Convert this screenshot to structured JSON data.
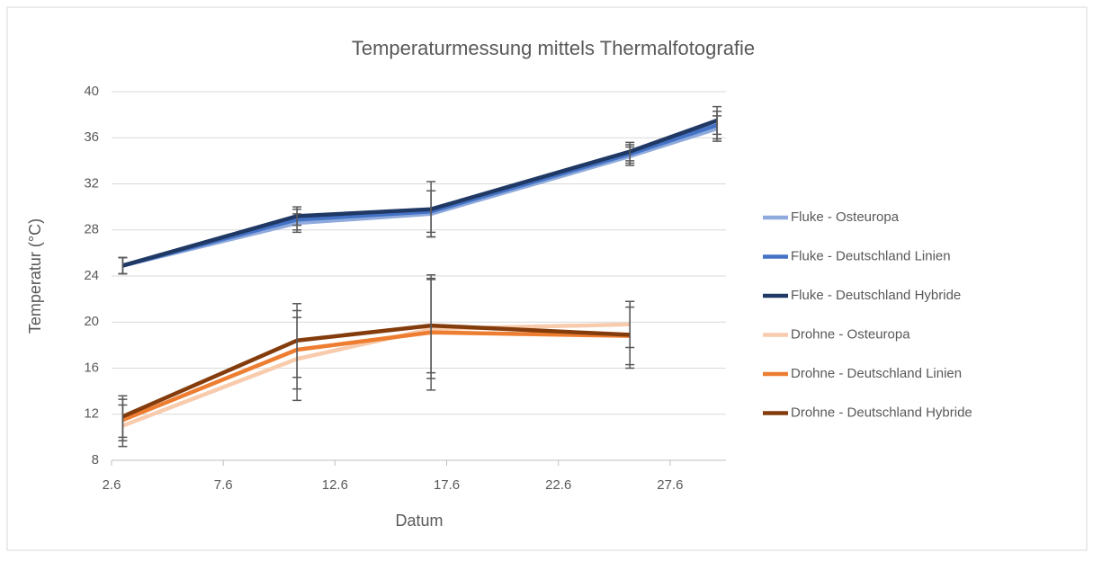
{
  "chart_data": {
    "type": "line",
    "title": "Temperaturmessung mittels Thermalfotografie",
    "x_label": "Datum",
    "y_label": "Temperatur (°C)",
    "x": [
      3.1,
      10.9,
      16.9,
      25.8,
      29.7
    ],
    "xlim": [
      2.6,
      30.1
    ],
    "xticks": [
      2.6,
      7.6,
      12.6,
      17.6,
      22.6,
      27.6
    ],
    "ylim": [
      8,
      40
    ],
    "yticks": [
      8,
      12,
      16,
      20,
      24,
      28,
      32,
      36,
      40
    ],
    "grid": true,
    "legend": "right",
    "series": [
      {
        "name": "Fluke - Osteuropa",
        "color": "#8faadc",
        "values": [
          24.9,
          28.6,
          29.4,
          34.4,
          36.8
        ],
        "errors": [
          0.7,
          0.8,
          2.0,
          0.8,
          1.1
        ]
      },
      {
        "name": "Fluke - Deutschland Linien",
        "color": "#4472c4",
        "values": [
          24.9,
          28.9,
          29.6,
          34.6,
          37.1
        ],
        "errors": [
          0.7,
          0.9,
          1.8,
          0.8,
          1.2
        ]
      },
      {
        "name": "Fluke - Deutschland Hybride",
        "color": "#1f3864",
        "values": [
          24.9,
          29.2,
          29.8,
          34.8,
          37.5
        ],
        "errors": [
          0.7,
          0.8,
          2.4,
          0.8,
          1.2
        ]
      },
      {
        "name": "Drohne - Osteuropa",
        "color": "#f8cbad",
        "values": [
          11.0,
          16.8,
          19.4,
          19.8,
          null
        ],
        "errors": [
          1.8,
          3.6,
          4.3,
          2.0,
          null
        ]
      },
      {
        "name": "Drohne - Deutschland Linien",
        "color": "#ed7d31",
        "values": [
          11.5,
          17.6,
          19.1,
          18.8,
          null
        ],
        "errors": [
          1.8,
          3.4,
          5.0,
          2.5,
          null
        ]
      },
      {
        "name": "Drohne - Deutschland Hybride",
        "color": "#843c0c",
        "values": [
          11.8,
          18.4,
          19.7,
          18.9,
          null
        ],
        "errors": [
          1.8,
          3.2,
          4.1,
          2.9,
          null
        ]
      }
    ]
  }
}
